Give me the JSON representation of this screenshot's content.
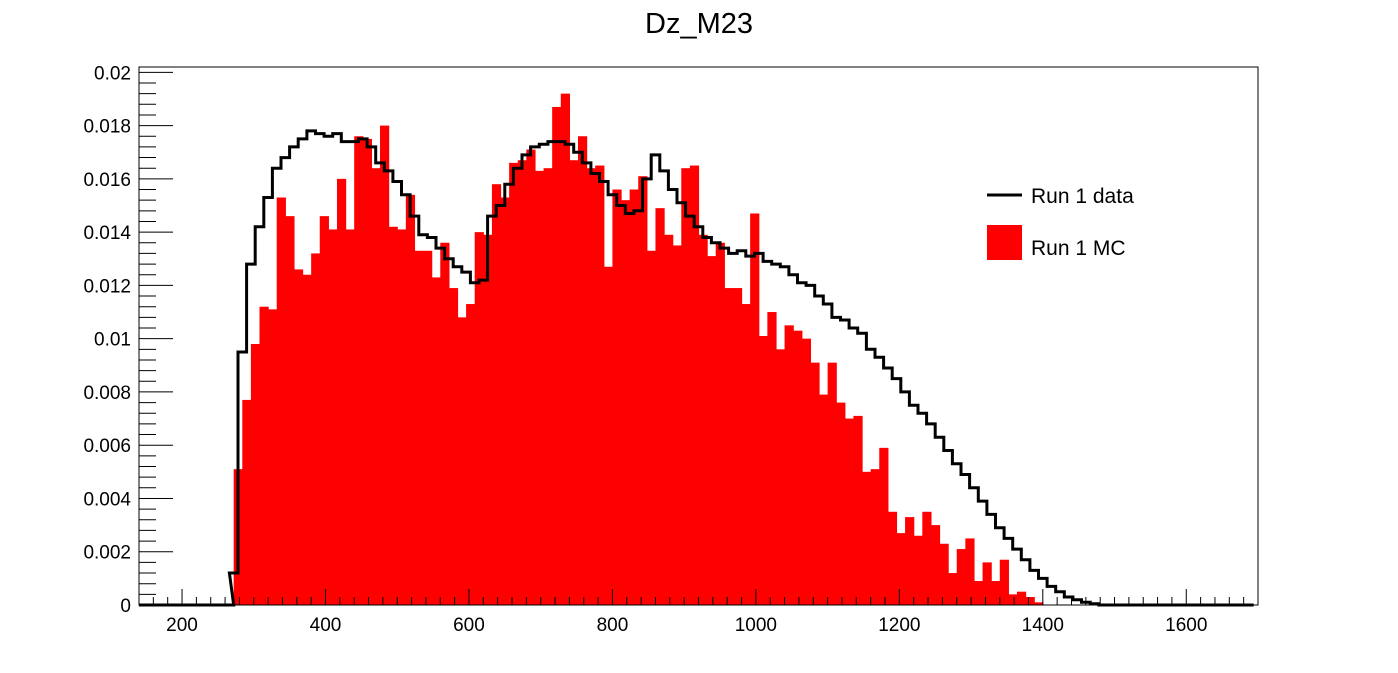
{
  "chart_data": {
    "type": "bar",
    "title": "Dz_M23",
    "xlabel": "",
    "ylabel": "",
    "xlim": [
      140,
      1700
    ],
    "ylim": [
      0,
      0.0202
    ],
    "x_ticks": [
      200,
      400,
      600,
      800,
      1000,
      1200,
      1400,
      1600
    ],
    "x_tick_labels": [
      "200",
      "400",
      "600",
      "800",
      "1000",
      "1200",
      "1400",
      "1600"
    ],
    "y_ticks": [
      0,
      0.002,
      0.004,
      0.006,
      0.008,
      0.01,
      0.012,
      0.014,
      0.016,
      0.018,
      0.02
    ],
    "y_tick_labels": [
      "0",
      "0.002",
      "0.004",
      "0.006",
      "0.008",
      "0.01",
      "0.012",
      "0.014",
      "0.016",
      "0.018",
      "0.02"
    ],
    "grid": false,
    "legend_position": "top-right",
    "bin_width": 12,
    "series": [
      {
        "name": "Run 1 data",
        "style": "step-line",
        "color": "#000000",
        "bins": [
          {
            "x": 140,
            "y": 0
          },
          {
            "x": 152,
            "y": 0
          },
          {
            "x": 164,
            "y": 0
          },
          {
            "x": 176,
            "y": 0
          },
          {
            "x": 188,
            "y": 0
          },
          {
            "x": 200,
            "y": 0
          },
          {
            "x": 212,
            "y": 0
          },
          {
            "x": 224,
            "y": 0
          },
          {
            "x": 236,
            "y": 0
          },
          {
            "x": 248,
            "y": 0
          },
          {
            "x": 260,
            "y": 0
          },
          {
            "x": 266,
            "y": 0.0012
          },
          {
            "x": 278,
            "y": 0.0095
          },
          {
            "x": 290,
            "y": 0.0128
          },
          {
            "x": 302,
            "y": 0.0142
          },
          {
            "x": 314,
            "y": 0.0153
          },
          {
            "x": 326,
            "y": 0.0164
          },
          {
            "x": 338,
            "y": 0.0168
          },
          {
            "x": 350,
            "y": 0.0172
          },
          {
            "x": 362,
            "y": 0.0175
          },
          {
            "x": 374,
            "y": 0.0178
          },
          {
            "x": 386,
            "y": 0.0177
          },
          {
            "x": 398,
            "y": 0.0176
          },
          {
            "x": 410,
            "y": 0.0177
          },
          {
            "x": 422,
            "y": 0.0174
          },
          {
            "x": 434,
            "y": 0.0174
          },
          {
            "x": 446,
            "y": 0.0175
          },
          {
            "x": 458,
            "y": 0.0172
          },
          {
            "x": 470,
            "y": 0.0166
          },
          {
            "x": 482,
            "y": 0.0163
          },
          {
            "x": 494,
            "y": 0.0159
          },
          {
            "x": 506,
            "y": 0.0154
          },
          {
            "x": 518,
            "y": 0.0146
          },
          {
            "x": 530,
            "y": 0.0139
          },
          {
            "x": 542,
            "y": 0.0138
          },
          {
            "x": 554,
            "y": 0.0134
          },
          {
            "x": 566,
            "y": 0.013
          },
          {
            "x": 578,
            "y": 0.0127
          },
          {
            "x": 590,
            "y": 0.0125
          },
          {
            "x": 602,
            "y": 0.0121
          },
          {
            "x": 614,
            "y": 0.0122
          },
          {
            "x": 626,
            "y": 0.0146
          },
          {
            "x": 638,
            "y": 0.015
          },
          {
            "x": 650,
            "y": 0.0158
          },
          {
            "x": 662,
            "y": 0.0164
          },
          {
            "x": 674,
            "y": 0.0169
          },
          {
            "x": 686,
            "y": 0.0172
          },
          {
            "x": 698,
            "y": 0.0173
          },
          {
            "x": 710,
            "y": 0.0174
          },
          {
            "x": 722,
            "y": 0.0174
          },
          {
            "x": 734,
            "y": 0.0173
          },
          {
            "x": 746,
            "y": 0.017
          },
          {
            "x": 758,
            "y": 0.0166
          },
          {
            "x": 770,
            "y": 0.0162
          },
          {
            "x": 782,
            "y": 0.0159
          },
          {
            "x": 794,
            "y": 0.0154
          },
          {
            "x": 806,
            "y": 0.015
          },
          {
            "x": 818,
            "y": 0.0147
          },
          {
            "x": 830,
            "y": 0.0148
          },
          {
            "x": 842,
            "y": 0.016
          },
          {
            "x": 854,
            "y": 0.0169
          },
          {
            "x": 866,
            "y": 0.0163
          },
          {
            "x": 878,
            "y": 0.0156
          },
          {
            "x": 890,
            "y": 0.0151
          },
          {
            "x": 902,
            "y": 0.0146
          },
          {
            "x": 914,
            "y": 0.0142
          },
          {
            "x": 926,
            "y": 0.0138
          },
          {
            "x": 938,
            "y": 0.0136
          },
          {
            "x": 950,
            "y": 0.0134
          },
          {
            "x": 962,
            "y": 0.0132
          },
          {
            "x": 974,
            "y": 0.0133
          },
          {
            "x": 986,
            "y": 0.0131
          },
          {
            "x": 998,
            "y": 0.0132
          },
          {
            "x": 1010,
            "y": 0.0129
          },
          {
            "x": 1022,
            "y": 0.0128
          },
          {
            "x": 1034,
            "y": 0.0127
          },
          {
            "x": 1046,
            "y": 0.0124
          },
          {
            "x": 1058,
            "y": 0.0121
          },
          {
            "x": 1070,
            "y": 0.012
          },
          {
            "x": 1082,
            "y": 0.0116
          },
          {
            "x": 1094,
            "y": 0.0113
          },
          {
            "x": 1106,
            "y": 0.0108
          },
          {
            "x": 1118,
            "y": 0.0107
          },
          {
            "x": 1130,
            "y": 0.0104
          },
          {
            "x": 1142,
            "y": 0.0102
          },
          {
            "x": 1154,
            "y": 0.0096
          },
          {
            "x": 1166,
            "y": 0.0093
          },
          {
            "x": 1178,
            "y": 0.0089
          },
          {
            "x": 1190,
            "y": 0.0085
          },
          {
            "x": 1202,
            "y": 0.008
          },
          {
            "x": 1214,
            "y": 0.0075
          },
          {
            "x": 1226,
            "y": 0.0072
          },
          {
            "x": 1238,
            "y": 0.0068
          },
          {
            "x": 1250,
            "y": 0.0063
          },
          {
            "x": 1262,
            "y": 0.0058
          },
          {
            "x": 1274,
            "y": 0.0053
          },
          {
            "x": 1286,
            "y": 0.0049
          },
          {
            "x": 1298,
            "y": 0.0044
          },
          {
            "x": 1310,
            "y": 0.0039
          },
          {
            "x": 1322,
            "y": 0.0034
          },
          {
            "x": 1334,
            "y": 0.0029
          },
          {
            "x": 1346,
            "y": 0.0025
          },
          {
            "x": 1358,
            "y": 0.0021
          },
          {
            "x": 1370,
            "y": 0.0017
          },
          {
            "x": 1382,
            "y": 0.0013
          },
          {
            "x": 1394,
            "y": 0.001
          },
          {
            "x": 1406,
            "y": 0.0007
          },
          {
            "x": 1418,
            "y": 0.0005
          },
          {
            "x": 1430,
            "y": 0.0003
          },
          {
            "x": 1442,
            "y": 0.0002
          },
          {
            "x": 1454,
            "y": 0.0001
          },
          {
            "x": 1466,
            "y": 5e-05
          },
          {
            "x": 1478,
            "y": 0
          },
          {
            "x": 1490,
            "y": 0
          },
          {
            "x": 1502,
            "y": 0
          },
          {
            "x": 1514,
            "y": 0
          },
          {
            "x": 1526,
            "y": 0
          },
          {
            "x": 1538,
            "y": 0
          },
          {
            "x": 1550,
            "y": 0
          },
          {
            "x": 1562,
            "y": 0
          },
          {
            "x": 1574,
            "y": 0
          },
          {
            "x": 1586,
            "y": 0
          },
          {
            "x": 1598,
            "y": 0
          },
          {
            "x": 1610,
            "y": 0
          },
          {
            "x": 1622,
            "y": 0
          },
          {
            "x": 1634,
            "y": 0
          },
          {
            "x": 1646,
            "y": 0
          },
          {
            "x": 1658,
            "y": 0
          },
          {
            "x": 1670,
            "y": 0
          },
          {
            "x": 1682,
            "y": 0
          }
        ]
      },
      {
        "name": "Run 1 MC",
        "style": "filled-bars",
        "color": "#ff0000",
        "bins": [
          {
            "x": 272,
            "y": 0.0051
          },
          {
            "x": 284,
            "y": 0.0077
          },
          {
            "x": 296,
            "y": 0.0098
          },
          {
            "x": 308,
            "y": 0.0112
          },
          {
            "x": 320,
            "y": 0.0111
          },
          {
            "x": 332,
            "y": 0.0153
          },
          {
            "x": 344,
            "y": 0.0146
          },
          {
            "x": 356,
            "y": 0.0126
          },
          {
            "x": 368,
            "y": 0.0124
          },
          {
            "x": 380,
            "y": 0.0132
          },
          {
            "x": 392,
            "y": 0.0146
          },
          {
            "x": 404,
            "y": 0.0141
          },
          {
            "x": 416,
            "y": 0.016
          },
          {
            "x": 428,
            "y": 0.0141
          },
          {
            "x": 440,
            "y": 0.0176
          },
          {
            "x": 452,
            "y": 0.0175
          },
          {
            "x": 464,
            "y": 0.0164
          },
          {
            "x": 476,
            "y": 0.018
          },
          {
            "x": 488,
            "y": 0.0142
          },
          {
            "x": 500,
            "y": 0.0141
          },
          {
            "x": 512,
            "y": 0.0154
          },
          {
            "x": 524,
            "y": 0.0133
          },
          {
            "x": 536,
            "y": 0.0133
          },
          {
            "x": 548,
            "y": 0.0123
          },
          {
            "x": 560,
            "y": 0.0136
          },
          {
            "x": 572,
            "y": 0.0119
          },
          {
            "x": 584,
            "y": 0.0108
          },
          {
            "x": 596,
            "y": 0.0113
          },
          {
            "x": 608,
            "y": 0.014
          },
          {
            "x": 620,
            "y": 0.0139
          },
          {
            "x": 632,
            "y": 0.0158
          },
          {
            "x": 644,
            "y": 0.0153
          },
          {
            "x": 656,
            "y": 0.0166
          },
          {
            "x": 668,
            "y": 0.0167
          },
          {
            "x": 680,
            "y": 0.0171
          },
          {
            "x": 692,
            "y": 0.0163
          },
          {
            "x": 704,
            "y": 0.0164
          },
          {
            "x": 716,
            "y": 0.0187
          },
          {
            "x": 728,
            "y": 0.0192
          },
          {
            "x": 740,
            "y": 0.0167
          },
          {
            "x": 752,
            "y": 0.0176
          },
          {
            "x": 764,
            "y": 0.0164
          },
          {
            "x": 776,
            "y": 0.0165
          },
          {
            "x": 788,
            "y": 0.0127
          },
          {
            "x": 800,
            "y": 0.0156
          },
          {
            "x": 812,
            "y": 0.0152
          },
          {
            "x": 824,
            "y": 0.0156
          },
          {
            "x": 836,
            "y": 0.0161
          },
          {
            "x": 848,
            "y": 0.0133
          },
          {
            "x": 860,
            "y": 0.0149
          },
          {
            "x": 872,
            "y": 0.0139
          },
          {
            "x": 884,
            "y": 0.0135
          },
          {
            "x": 896,
            "y": 0.0164
          },
          {
            "x": 908,
            "y": 0.0165
          },
          {
            "x": 920,
            "y": 0.0139
          },
          {
            "x": 932,
            "y": 0.0131
          },
          {
            "x": 944,
            "y": 0.0136
          },
          {
            "x": 956,
            "y": 0.0119
          },
          {
            "x": 968,
            "y": 0.0119
          },
          {
            "x": 980,
            "y": 0.0113
          },
          {
            "x": 992,
            "y": 0.0147
          },
          {
            "x": 1004,
            "y": 0.0101
          },
          {
            "x": 1016,
            "y": 0.011
          },
          {
            "x": 1028,
            "y": 0.0096
          },
          {
            "x": 1040,
            "y": 0.0105
          },
          {
            "x": 1052,
            "y": 0.0103
          },
          {
            "x": 1064,
            "y": 0.01
          },
          {
            "x": 1076,
            "y": 0.0091
          },
          {
            "x": 1088,
            "y": 0.0079
          },
          {
            "x": 1100,
            "y": 0.0091
          },
          {
            "x": 1112,
            "y": 0.0076
          },
          {
            "x": 1124,
            "y": 0.007
          },
          {
            "x": 1136,
            "y": 0.0071
          },
          {
            "x": 1148,
            "y": 0.005
          },
          {
            "x": 1160,
            "y": 0.0051
          },
          {
            "x": 1172,
            "y": 0.0059
          },
          {
            "x": 1184,
            "y": 0.0035
          },
          {
            "x": 1196,
            "y": 0.0027
          },
          {
            "x": 1208,
            "y": 0.0033
          },
          {
            "x": 1220,
            "y": 0.0026
          },
          {
            "x": 1232,
            "y": 0.0035
          },
          {
            "x": 1244,
            "y": 0.003
          },
          {
            "x": 1256,
            "y": 0.0023
          },
          {
            "x": 1268,
            "y": 0.0012
          },
          {
            "x": 1280,
            "y": 0.0021
          },
          {
            "x": 1292,
            "y": 0.0025
          },
          {
            "x": 1304,
            "y": 0.0009
          },
          {
            "x": 1316,
            "y": 0.0016
          },
          {
            "x": 1328,
            "y": 0.0009
          },
          {
            "x": 1340,
            "y": 0.0017
          },
          {
            "x": 1352,
            "y": 0.0004
          },
          {
            "x": 1364,
            "y": 0.0005
          },
          {
            "x": 1376,
            "y": 0.0003
          },
          {
            "x": 1388,
            "y": 0.0001
          }
        ]
      }
    ]
  }
}
